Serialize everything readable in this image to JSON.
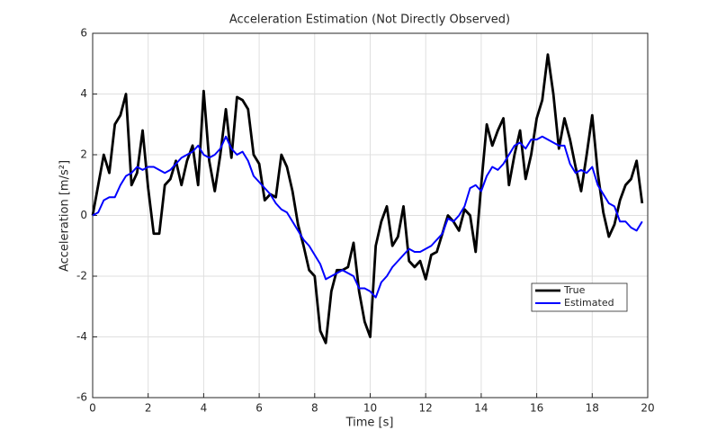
{
  "chart_data": {
    "type": "line",
    "title": "Acceleration Estimation (Not Directly Observed)",
    "xlabel": "Time [s]",
    "ylabel": "Acceleration [m/s²]",
    "x": [
      0,
      0.2,
      0.4,
      0.6,
      0.8,
      1,
      1.2,
      1.4,
      1.6,
      1.8,
      2,
      2.2,
      2.4,
      2.6,
      2.8,
      3,
      3.2,
      3.4,
      3.6,
      3.8,
      4,
      4.2,
      4.4,
      4.6,
      4.8,
      5,
      5.2,
      5.4,
      5.6,
      5.8,
      6,
      6.2,
      6.4,
      6.6,
      6.8,
      7,
      7.2,
      7.4,
      7.6,
      7.8,
      8,
      8.2,
      8.4,
      8.6,
      8.8,
      9,
      9.2,
      9.4,
      9.6,
      9.8,
      10,
      10.2,
      10.4,
      10.6,
      10.8,
      11,
      11.2,
      11.4,
      11.6,
      11.8,
      12,
      12.2,
      12.4,
      12.6,
      12.8,
      13,
      13.2,
      13.4,
      13.6,
      13.8,
      14,
      14.2,
      14.4,
      14.6,
      14.8,
      15,
      15.2,
      15.4,
      15.6,
      15.8,
      16,
      16.2,
      16.4,
      16.6,
      16.8,
      17,
      17.2,
      17.4,
      17.6,
      17.8,
      18,
      18.2,
      18.4,
      18.6,
      18.8,
      19,
      19.2,
      19.4,
      19.6,
      19.8
    ],
    "series": [
      {
        "name": "True",
        "color": "#000000",
        "width": 2.8,
        "values": [
          0,
          1.0,
          2.0,
          1.4,
          3.0,
          3.3,
          4.0,
          1.0,
          1.4,
          2.8,
          0.9,
          -0.6,
          -0.6,
          1.0,
          1.2,
          1.8,
          1.0,
          1.8,
          2.3,
          1.0,
          4.1,
          1.8,
          0.8,
          2.0,
          3.5,
          1.9,
          3.9,
          3.8,
          3.5,
          2.0,
          1.7,
          0.5,
          0.7,
          0.6,
          2.0,
          1.6,
          0.8,
          -0.3,
          -1.0,
          -1.8,
          -2.0,
          -3.8,
          -4.2,
          -2.5,
          -1.8,
          -1.8,
          -1.7,
          -0.9,
          -2.5,
          -3.5,
          -4.0,
          -1.0,
          -0.2,
          0.3,
          -1.0,
          -0.7,
          0.3,
          -1.5,
          -1.7,
          -1.5,
          -2.1,
          -1.3,
          -1.2,
          -0.6,
          0.0,
          -0.2,
          -0.5,
          0.2,
          0.0,
          -1.2,
          1.0,
          3.0,
          2.3,
          2.8,
          3.2,
          1.0,
          2.0,
          2.8,
          1.2,
          2.0,
          3.2,
          3.8,
          5.3,
          4.0,
          2.2,
          3.2,
          2.5,
          1.6,
          0.8,
          2.0,
          3.3,
          1.4,
          0.1,
          -0.7,
          -0.3,
          0.5,
          1.0,
          1.2,
          1.8,
          0.4
        ]
      },
      {
        "name": "Estimated",
        "color": "#0000ff",
        "width": 2,
        "values": [
          0,
          0.1,
          0.5,
          0.6,
          0.6,
          1.0,
          1.3,
          1.4,
          1.6,
          1.5,
          1.6,
          1.6,
          1.5,
          1.4,
          1.5,
          1.7,
          1.9,
          2.0,
          2.1,
          2.3,
          2.0,
          1.9,
          2.0,
          2.2,
          2.6,
          2.2,
          2.0,
          2.1,
          1.8,
          1.3,
          1.1,
          0.9,
          0.7,
          0.4,
          0.2,
          0.1,
          -0.2,
          -0.5,
          -0.8,
          -1.0,
          -1.3,
          -1.6,
          -2.1,
          -2.0,
          -1.9,
          -1.8,
          -1.9,
          -2.0,
          -2.4,
          -2.4,
          -2.5,
          -2.7,
          -2.2,
          -2.0,
          -1.7,
          -1.5,
          -1.3,
          -1.1,
          -1.2,
          -1.2,
          -1.1,
          -1.0,
          -0.8,
          -0.6,
          -0.1,
          -0.2,
          0.0,
          0.3,
          0.9,
          1.0,
          0.8,
          1.3,
          1.6,
          1.5,
          1.7,
          2.0,
          2.3,
          2.4,
          2.2,
          2.5,
          2.5,
          2.6,
          2.5,
          2.4,
          2.3,
          2.3,
          1.7,
          1.4,
          1.5,
          1.4,
          1.6,
          1.0,
          0.7,
          0.4,
          0.3,
          -0.2,
          -0.2,
          -0.4,
          -0.5,
          -0.2
        ]
      }
    ],
    "xlim": [
      0,
      20
    ],
    "xticks": [
      0,
      2,
      4,
      6,
      8,
      10,
      12,
      14,
      16,
      18,
      20
    ],
    "ylim": [
      -6,
      6
    ],
    "yticks": [
      -6,
      -4,
      -2,
      0,
      2,
      4,
      6
    ],
    "grid": true,
    "legend": "southeast"
  }
}
